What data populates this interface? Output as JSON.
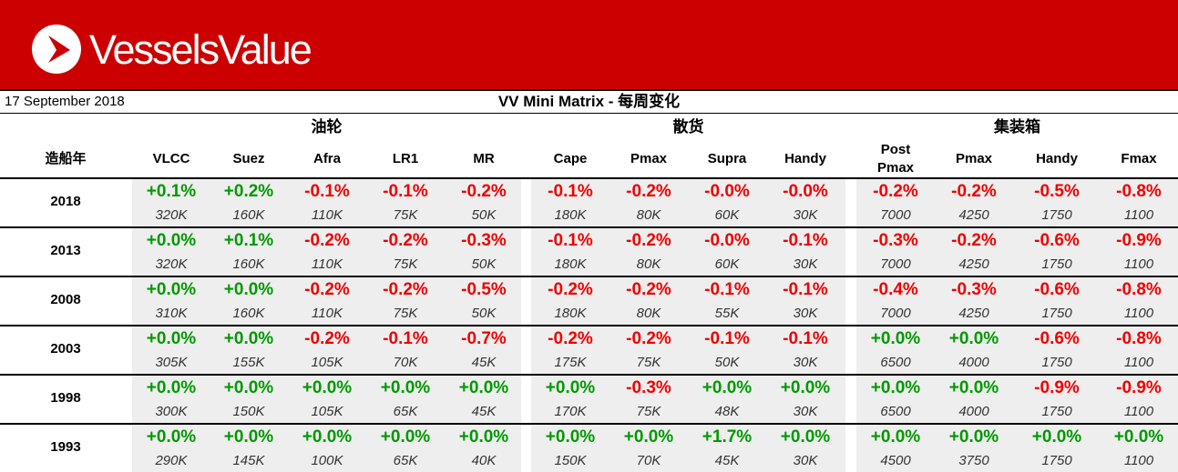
{
  "brand": {
    "name": "VesselsValue",
    "banner_color": "#cc0000"
  },
  "date": "17 September 2018",
  "title": "VV Mini Matrix - 每周变化",
  "row_header": "造船年",
  "colors": {
    "positive": "#009900",
    "negative": "#ee0000"
  },
  "groups": [
    {
      "label": "油轮",
      "columns": [
        "VLCC",
        "Suez",
        "Afra",
        "LR1",
        "MR"
      ]
    },
    {
      "label": "散货",
      "columns": [
        "Cape",
        "Pmax",
        "Supra",
        "Handy"
      ]
    },
    {
      "label": "集装箱",
      "columns": [
        "Post\nPmax",
        "Pmax",
        "Handy",
        "Fmax"
      ]
    }
  ],
  "rows": [
    {
      "year": "2018",
      "changes": [
        "+0.1%",
        "+0.2%",
        "-0.1%",
        "-0.1%",
        "-0.2%",
        "-0.1%",
        "-0.2%",
        "-0.0%",
        "-0.0%",
        "-0.2%",
        "-0.2%",
        "-0.5%",
        "-0.8%"
      ],
      "sizes": [
        "320K",
        "160K",
        "110K",
        "75K",
        "50K",
        "180K",
        "80K",
        "60K",
        "30K",
        "7000",
        "4250",
        "1750",
        "1100"
      ]
    },
    {
      "year": "2013",
      "changes": [
        "+0.0%",
        "+0.1%",
        "-0.2%",
        "-0.2%",
        "-0.3%",
        "-0.1%",
        "-0.2%",
        "-0.0%",
        "-0.1%",
        "-0.3%",
        "-0.2%",
        "-0.6%",
        "-0.9%"
      ],
      "sizes": [
        "320K",
        "160K",
        "110K",
        "75K",
        "50K",
        "180K",
        "80K",
        "60K",
        "30K",
        "7000",
        "4250",
        "1750",
        "1100"
      ]
    },
    {
      "year": "2008",
      "changes": [
        "+0.0%",
        "+0.0%",
        "-0.2%",
        "-0.2%",
        "-0.5%",
        "-0.2%",
        "-0.2%",
        "-0.1%",
        "-0.1%",
        "-0.4%",
        "-0.3%",
        "-0.6%",
        "-0.8%"
      ],
      "sizes": [
        "310K",
        "160K",
        "110K",
        "75K",
        "50K",
        "180K",
        "80K",
        "55K",
        "30K",
        "7000",
        "4250",
        "1750",
        "1100"
      ]
    },
    {
      "year": "2003",
      "changes": [
        "+0.0%",
        "+0.0%",
        "-0.2%",
        "-0.1%",
        "-0.7%",
        "-0.2%",
        "-0.2%",
        "-0.1%",
        "-0.1%",
        "+0.0%",
        "+0.0%",
        "-0.6%",
        "-0.8%"
      ],
      "sizes": [
        "305K",
        "155K",
        "105K",
        "70K",
        "45K",
        "175K",
        "75K",
        "50K",
        "30K",
        "6500",
        "4000",
        "1750",
        "1100"
      ]
    },
    {
      "year": "1998",
      "changes": [
        "+0.0%",
        "+0.0%",
        "+0.0%",
        "+0.0%",
        "+0.0%",
        "+0.0%",
        "-0.3%",
        "+0.0%",
        "+0.0%",
        "+0.0%",
        "+0.0%",
        "-0.9%",
        "-0.9%"
      ],
      "sizes": [
        "300K",
        "150K",
        "105K",
        "65K",
        "45K",
        "170K",
        "75K",
        "48K",
        "30K",
        "6500",
        "4000",
        "1750",
        "1100"
      ]
    },
    {
      "year": "1993",
      "changes": [
        "+0.0%",
        "+0.0%",
        "+0.0%",
        "+0.0%",
        "+0.0%",
        "+0.0%",
        "+0.0%",
        "+1.7%",
        "+0.0%",
        "+0.0%",
        "+0.0%",
        "+0.0%",
        "+0.0%"
      ],
      "sizes": [
        "290K",
        "145K",
        "100K",
        "65K",
        "40K",
        "150K",
        "70K",
        "45K",
        "30K",
        "4500",
        "3750",
        "1750",
        "1100"
      ]
    }
  ]
}
